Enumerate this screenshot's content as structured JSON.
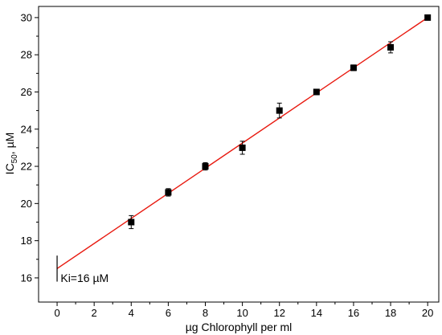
{
  "chart_data": {
    "type": "scatter",
    "title": "",
    "xlabel": "µg Chlorophyll per ml",
    "ylabel_main": "IC",
    "ylabel_sub": "50",
    "ylabel_tail": ", µM",
    "xlim": [
      -1,
      20.6
    ],
    "ylim": [
      14.7,
      30.6
    ],
    "x_ticks": [
      0,
      2,
      4,
      6,
      8,
      10,
      12,
      14,
      16,
      18,
      20
    ],
    "y_ticks": [
      16,
      18,
      20,
      22,
      24,
      26,
      28,
      30
    ],
    "x_tick_labels": [
      "0",
      "2",
      "4",
      "6",
      "8",
      "10",
      "12",
      "14",
      "16",
      "18",
      "20"
    ],
    "y_tick_labels": [
      "16",
      "18",
      "20",
      "22",
      "24",
      "26",
      "28",
      "30"
    ],
    "grid": false,
    "series": [
      {
        "marker": "square",
        "color": "#000000",
        "points": [
          {
            "x": 4,
            "y": 19.0,
            "err": 0.35
          },
          {
            "x": 6,
            "y": 20.6,
            "err": 0.2
          },
          {
            "x": 8,
            "y": 22.0,
            "err": 0.2
          },
          {
            "x": 10,
            "y": 23.0,
            "err": 0.35
          },
          {
            "x": 12,
            "y": 25.0,
            "err": 0.4
          },
          {
            "x": 14,
            "y": 26.0,
            "err": 0.15
          },
          {
            "x": 16,
            "y": 27.3,
            "err": 0.15
          },
          {
            "x": 18,
            "y": 28.4,
            "err": 0.3
          },
          {
            "x": 20,
            "y": 30.0,
            "err": 0.1
          }
        ]
      }
    ],
    "fit_line": {
      "color": "#e8190f",
      "x_start": 0,
      "y_start": 16.5,
      "x_end": 20,
      "y_end": 30.0
    },
    "annotation": {
      "text": "Ki=16 µM",
      "marker_x": 0,
      "marker_y_from": 15.8,
      "marker_y_to": 17.2,
      "text_x": 0.1,
      "text_y": 16.0
    }
  }
}
